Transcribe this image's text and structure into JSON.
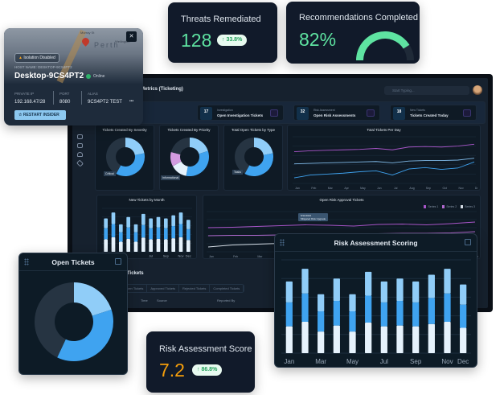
{
  "host_card": {
    "isolation_badge": "Isolation Disabled",
    "host_name_label": "HOST NAME: DESKTOP-9CS4PT2",
    "host_name": "Desktop-9CS4PT2",
    "status": "Online",
    "map_label": "Perth",
    "map_streets": [
      "Murray St",
      "Wellington"
    ],
    "private_ip_label": "PRIVATE IP",
    "private_ip": "192.168.47/28",
    "port_label": "PORT",
    "port": "8080",
    "alias_label": "ALIAS",
    "alias": "9CS4PT2 TEST",
    "more": "•••",
    "restart_button": "RESTART INSIDER",
    "close": "✕"
  },
  "threats_card": {
    "title": "Threats Remediated",
    "value": "128",
    "change": "33.8%",
    "accent": "#5ee3a1"
  },
  "recommendations_card": {
    "title": "Recommendations Completed",
    "value": "82%",
    "accent": "#5ee3a1"
  },
  "risk_score_card": {
    "title": "Risk Assessment Score",
    "value": "7.2",
    "change": "86.8%",
    "accent": "#f59e0b"
  },
  "dashboard": {
    "title": "Metrics (Ticketing)",
    "search_placeholder": "Start Typing...",
    "stats": [
      {
        "count": "17",
        "unit": "Tickets",
        "category": "Investigation",
        "label": "Open Investigation Tickets"
      },
      {
        "count": "32",
        "unit": "Tickets",
        "category": "Risk Assessment",
        "label": "Open Risk Assessments"
      },
      {
        "count": "18",
        "unit": "Tickets",
        "category": "New Tickets",
        "label": "Tickets Created Today"
      }
    ],
    "tickets_section": {
      "title": "Tickets",
      "tabs": [
        "Open Tickets",
        "Approved Tickets",
        "Rejected Tickets",
        "Completed Tickets"
      ],
      "columns": [
        "Time",
        "Source",
        "Reported By"
      ]
    },
    "tooltip": {
      "date": "5/11/2022",
      "text": "Mitigated Risk Upgrade"
    }
  },
  "colors": {
    "light_blue": "#90cdf8",
    "blue": "#3fa3f0",
    "white": "#e6f2fc",
    "dark": "#263442",
    "pink": "#d39be0",
    "purple": "#a855c8"
  },
  "chart_data": [
    {
      "id": "risk_scoring",
      "type": "bar",
      "stacked": true,
      "title": "Risk Assessment Scoring",
      "categories": [
        "Jan",
        "Feb",
        "Mar",
        "Apr",
        "May",
        "Jun",
        "Jul",
        "Aug",
        "Sep",
        "Oct",
        "Nov",
        "Dec"
      ],
      "tick_labels": [
        "Jan",
        "Mar",
        "May",
        "Jul",
        "Sep",
        "Nov",
        "Dec"
      ],
      "series": [
        {
          "values": [
            36,
            42,
            29,
            37,
            29,
            41,
            36,
            37,
            36,
            39,
            42,
            34
          ],
          "color": "#e6f2fc"
        },
        {
          "values": [
            32,
            38,
            27,
            33,
            27,
            36,
            32,
            33,
            32,
            35,
            38,
            31
          ],
          "color": "#3fa3f0"
        },
        {
          "values": [
            28,
            33,
            23,
            30,
            23,
            32,
            28,
            30,
            28,
            31,
            33,
            27
          ],
          "color": "#90cdf8"
        }
      ],
      "ylim": [
        0,
        125
      ],
      "grid": true
    },
    {
      "id": "new_by_month",
      "type": "bar",
      "stacked": true,
      "title": "New Tickets by Month",
      "categories": [
        "Jan",
        "Feb",
        "Mar",
        "Apr",
        "May",
        "Jun",
        "Jul",
        "Aug",
        "Sep",
        "Oct",
        "Nov",
        "Dec"
      ],
      "tick_labels": [
        "Mar",
        "Jul",
        "Sep",
        "Nov",
        "Dec"
      ],
      "series": [
        {
          "values": [
            36,
            42,
            29,
            37,
            29,
            41,
            36,
            37,
            36,
            39,
            42,
            34
          ],
          "color": "#e6f2fc"
        },
        {
          "values": [
            32,
            38,
            27,
            33,
            27,
            36,
            32,
            33,
            32,
            35,
            38,
            31
          ],
          "color": "#3fa3f0"
        },
        {
          "values": [
            28,
            33,
            23,
            30,
            23,
            32,
            28,
            30,
            28,
            31,
            33,
            27
          ],
          "color": "#90cdf8"
        }
      ],
      "ylim": [
        0,
        125
      ],
      "grid": true
    },
    {
      "id": "open_tickets",
      "type": "pie",
      "donut": true,
      "title": "Open Tickets",
      "values": [
        20,
        37,
        43
      ],
      "colors": [
        "#90cdf8",
        "#3fa3f0",
        "#263442"
      ]
    },
    {
      "id": "severity",
      "type": "pie",
      "donut": true,
      "title": "Tickets Created By Severity",
      "values": [
        22,
        36,
        42
      ],
      "colors": [
        "#90cdf8",
        "#3fa3f0",
        "#263442"
      ],
      "annotation": "Critical"
    },
    {
      "id": "priority",
      "type": "pie",
      "donut": true,
      "title": "Tickets Created By Priority",
      "values": [
        20,
        33,
        14,
        12,
        21
      ],
      "colors": [
        "#90cdf8",
        "#3fa3f0",
        "#e6f2fc",
        "#d39be0",
        "#263442"
      ],
      "annotation": "Informational"
    },
    {
      "id": "type",
      "type": "pie",
      "donut": true,
      "title": "Total Open Tickets by Type",
      "values": [
        22,
        36,
        42
      ],
      "colors": [
        "#90cdf8",
        "#3fa3f0",
        "#263442"
      ],
      "annotation": "Tasks"
    },
    {
      "id": "recommendations_gauge",
      "type": "pie",
      "gauge": true,
      "values": [
        82
      ],
      "range": [
        0,
        100
      ],
      "colors": [
        "#5ee3a1",
        "#1f2a38"
      ]
    },
    {
      "id": "per_day",
      "type": "line",
      "title": "Total Tickets Per Day",
      "x": [
        "Jan",
        "Feb",
        "Mar",
        "Apr",
        "May",
        "Jun",
        "Jul",
        "Aug",
        "Sep",
        "Oct",
        "Nov",
        "Dec"
      ],
      "series": [
        {
          "values": [
            68,
            70,
            71,
            72,
            73,
            75,
            72,
            78,
            79,
            78,
            80,
            84
          ],
          "color": "#a855c8"
        },
        {
          "values": [
            42,
            43,
            44,
            45,
            46,
            47,
            44,
            48,
            49,
            49,
            50,
            54
          ],
          "color": "#7fb8e6"
        },
        {
          "values": [
            12,
            18,
            20,
            22,
            25,
            27,
            18,
            31,
            34,
            30,
            33,
            46
          ],
          "color": "#3fa3f0"
        }
      ],
      "ylim": [
        0,
        100
      ],
      "grid": true
    },
    {
      "id": "open_risk_approval",
      "type": "line",
      "title": "Open Risk Approval Tickets",
      "x": [
        "Jan",
        "Feb",
        "Mar",
        "Apr",
        "May",
        "Jun",
        "Jul",
        "Aug",
        "Sep",
        "Oct",
        "Nov",
        "Dec"
      ],
      "legend": [
        "Series 1",
        "Series 2",
        "Series 3"
      ],
      "legend_position": "top-right",
      "series": [
        {
          "name": "Series 1",
          "values": [
            60,
            61,
            63,
            65,
            67,
            66,
            64,
            68,
            69,
            67,
            70,
            74
          ],
          "color": "#a855c8"
        },
        {
          "name": "Series 2",
          "values": [
            40,
            41,
            41,
            42,
            43,
            43,
            44,
            45,
            46,
            46,
            47,
            50
          ],
          "color": "#b26ad0"
        },
        {
          "name": "Series 3",
          "values": [
            12,
            17,
            19,
            21,
            23,
            25,
            26,
            28,
            29,
            30,
            32,
            36
          ],
          "color": "#d5dde6"
        }
      ],
      "ylim": [
        0,
        100
      ],
      "grid": true
    }
  ]
}
